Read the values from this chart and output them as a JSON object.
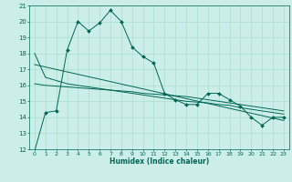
{
  "xlabel": "Humidex (Indice chaleur)",
  "background_color": "#cceee8",
  "grid_color": "#aaddcc",
  "line_color": "#006655",
  "xlim": [
    -0.5,
    23.5
  ],
  "ylim": [
    12,
    21
  ],
  "xticks": [
    0,
    1,
    2,
    3,
    4,
    5,
    6,
    7,
    8,
    9,
    10,
    11,
    12,
    13,
    14,
    15,
    16,
    17,
    18,
    19,
    20,
    21,
    22,
    23
  ],
  "yticks": [
    12,
    13,
    14,
    15,
    16,
    17,
    18,
    19,
    20,
    21
  ],
  "series1_x": [
    0,
    1,
    2,
    3,
    4,
    5,
    6,
    7,
    8,
    9,
    10,
    11,
    12,
    13,
    14,
    15,
    16,
    17,
    18,
    19,
    20,
    21,
    22,
    23
  ],
  "series1_y": [
    11.9,
    14.3,
    14.4,
    18.2,
    20.0,
    19.4,
    19.9,
    20.7,
    20.0,
    18.4,
    17.8,
    17.4,
    15.5,
    15.1,
    14.8,
    14.8,
    15.5,
    15.5,
    15.1,
    14.7,
    14.0,
    13.5,
    14.0,
    14.0
  ],
  "series2_x": [
    0,
    1,
    2,
    3,
    4,
    5,
    6,
    7,
    8,
    9,
    10,
    11,
    12,
    13,
    14,
    15,
    16,
    17,
    18,
    19,
    20,
    21,
    22,
    23
  ],
  "series2_y": [
    18.0,
    16.5,
    16.3,
    16.1,
    16.0,
    15.9,
    15.8,
    15.7,
    15.6,
    15.5,
    15.4,
    15.3,
    15.2,
    15.1,
    15.0,
    14.95,
    14.9,
    14.8,
    14.75,
    14.6,
    14.5,
    14.4,
    14.3,
    14.2
  ],
  "series3_x": [
    0,
    1,
    2,
    3,
    4,
    5,
    6,
    7,
    8,
    9,
    10,
    11,
    12,
    13,
    14,
    15,
    16,
    17,
    18,
    19,
    20,
    21,
    22,
    23
  ],
  "series3_y": [
    16.1,
    16.0,
    15.95,
    15.9,
    15.85,
    15.8,
    15.75,
    15.7,
    15.65,
    15.6,
    15.5,
    15.45,
    15.4,
    15.35,
    15.3,
    15.2,
    15.1,
    15.0,
    14.9,
    14.8,
    14.7,
    14.6,
    14.5,
    14.4
  ],
  "series4_x": [
    0,
    23
  ],
  "series4_y": [
    17.3,
    13.8
  ]
}
